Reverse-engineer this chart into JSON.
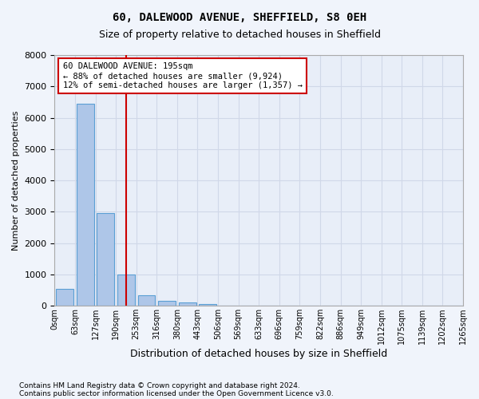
{
  "title": "60, DALEWOOD AVENUE, SHEFFIELD, S8 0EH",
  "subtitle": "Size of property relative to detached houses in Sheffield",
  "xlabel": "Distribution of detached houses by size in Sheffield",
  "ylabel": "Number of detached properties",
  "annotation_line1": "60 DALEWOOD AVENUE: 195sqm",
  "annotation_line2": "← 88% of detached houses are smaller (9,924)",
  "annotation_line3": "12% of semi-detached houses are larger (1,357) →",
  "footer_line1": "Contains HM Land Registry data © Crown copyright and database right 2024.",
  "footer_line2": "Contains public sector information licensed under the Open Government Licence v3.0.",
  "bin_labels": [
    "0sqm",
    "63sqm",
    "127sqm",
    "190sqm",
    "253sqm",
    "316sqm",
    "380sqm",
    "443sqm",
    "506sqm",
    "569sqm",
    "633sqm",
    "696sqm",
    "759sqm",
    "822sqm",
    "886sqm",
    "949sqm",
    "1012sqm",
    "1075sqm",
    "1139sqm",
    "1202sqm",
    "1265sqm"
  ],
  "bar_heights": [
    550,
    6450,
    2950,
    990,
    340,
    160,
    95,
    65,
    0,
    0,
    0,
    0,
    0,
    0,
    0,
    0,
    0,
    0,
    0,
    0
  ],
  "bar_color": "#aec6e8",
  "bar_edge_color": "#5a9fd4",
  "grid_color": "#d0d8e8",
  "vline_color": "#cc0000",
  "vline_x": 3.0,
  "ylim": [
    0,
    8000
  ],
  "yticks": [
    0,
    1000,
    2000,
    3000,
    4000,
    5000,
    6000,
    7000,
    8000
  ],
  "bg_color": "#f0f4fb",
  "axes_bg_color": "#e8eef8"
}
